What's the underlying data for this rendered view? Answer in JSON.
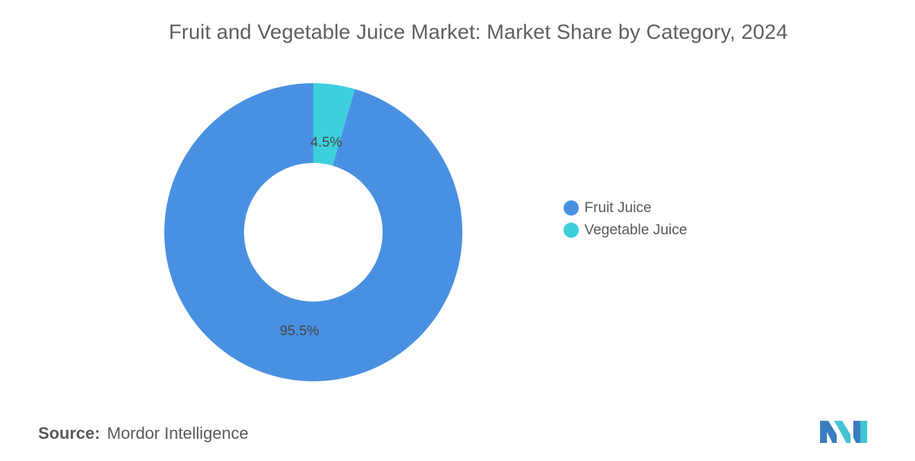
{
  "chart_data": {
    "type": "pie",
    "title": "Fruit and Vegetable Juice Market: Market Share by Category, 2024",
    "donut": true,
    "legend_position": "right",
    "slices": [
      {
        "label": "Fruit Juice",
        "value": 95.5,
        "display": "95.5%",
        "color": "#4a90e2"
      },
      {
        "label": "Vegetable Juice",
        "value": 4.5,
        "display": "4.5%",
        "color": "#3ecfdc"
      }
    ]
  },
  "source": {
    "label": "Source:",
    "text": "Mordor Intelligence"
  },
  "logo": {
    "icon": "mordor-intelligence-logo",
    "colors": [
      "#3a7ebf",
      "#45c3d4"
    ]
  }
}
